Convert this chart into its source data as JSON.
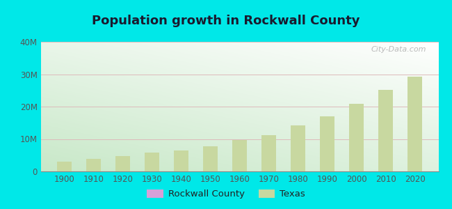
{
  "title": "Population growth in Rockwall County",
  "years": [
    1900,
    1910,
    1920,
    1930,
    1940,
    1950,
    1960,
    1970,
    1980,
    1990,
    2000,
    2010,
    2020
  ],
  "texas_population": [
    3048710,
    3896542,
    4663228,
    5824715,
    6414824,
    7711194,
    9579677,
    11196730,
    14229191,
    16986510,
    20851820,
    25145561,
    29145505
  ],
  "rockwall_population": [
    6928,
    7629,
    9354,
    10060,
    9898,
    9986,
    14528,
    19612,
    36747,
    43080,
    43080,
    78337,
    107289
  ],
  "bar_color_texas": "#c8d8a0",
  "bar_color_rockwall": "#d8a0d8",
  "outer_bg": "#00e8e8",
  "ylim": [
    0,
    40000000
  ],
  "yticks": [
    0,
    10000000,
    20000000,
    30000000,
    40000000
  ],
  "ytick_labels": [
    "0",
    "10M",
    "20M",
    "30M",
    "40M"
  ],
  "watermark": "City-Data.com",
  "legend_rockwall": "Rockwall County",
  "legend_texas": "Texas",
  "xlim_left": 1892,
  "xlim_right": 2028
}
